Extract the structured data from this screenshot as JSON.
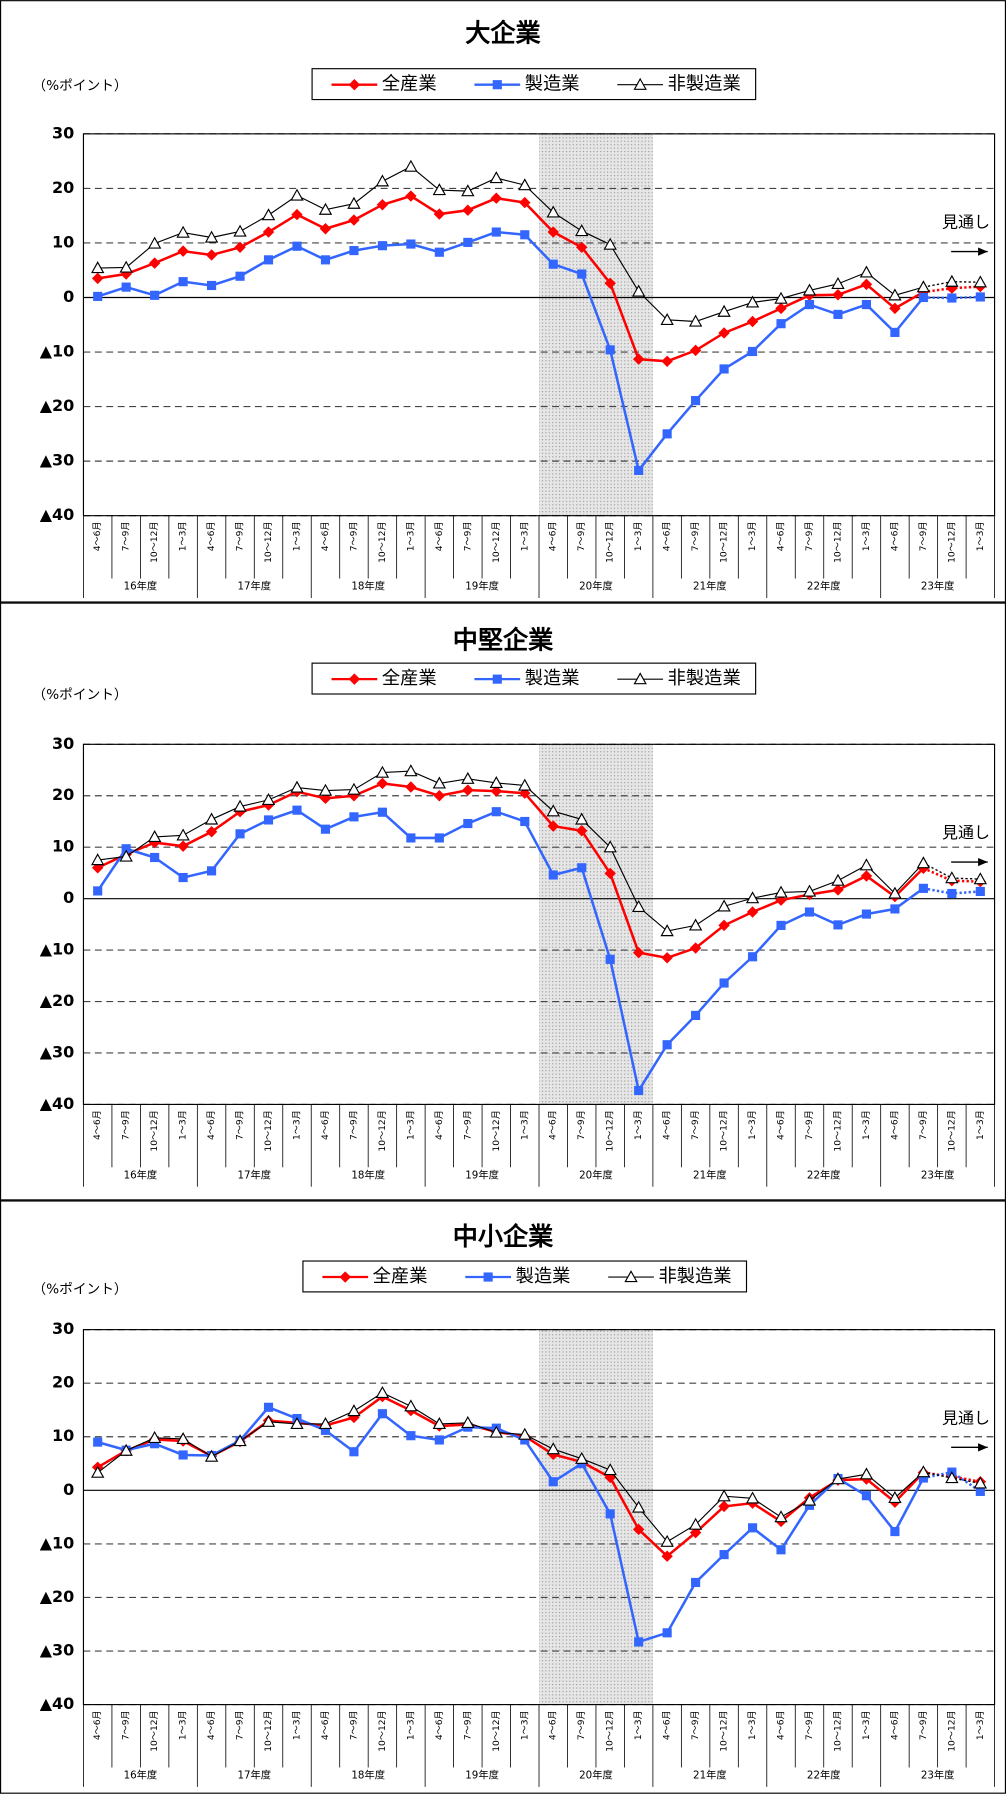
{
  "chart_data": [
    {
      "type": "line",
      "title": "大企業",
      "y_label": "（%ポイント）",
      "categories": [
        "4～6月",
        "7～9月",
        "10～12月",
        "1～3月",
        "4～6月",
        "7～9月",
        "10～12月",
        "1～3月",
        "4～6月",
        "7～9月",
        "10～12月",
        "1～3月",
        "4～6月",
        "7～9月",
        "10～12月",
        "1～3月",
        "4～6月",
        "7～9月",
        "10～12月",
        "1～3月",
        "4～6月",
        "7～9月",
        "10～12月",
        "1～3月",
        "4～6月",
        "7～9月",
        "10～12月",
        "1～3月",
        "4～6月",
        "7～9月",
        "10～12月",
        "1～3月"
      ],
      "groups": [
        "16年度",
        "17年度",
        "18年度",
        "19年度",
        "20年度",
        "21年度",
        "22年度",
        "23年度"
      ],
      "shaded": "20年度",
      "forecast_label": "見通し",
      "forecast_start": 30,
      "ylim": [
        -40,
        30
      ],
      "yticks": [
        30,
        20,
        10,
        0,
        {
          "value": -10,
          "label": "▲10"
        },
        {
          "value": -20,
          "label": "▲20"
        },
        {
          "value": -30,
          "label": "▲30"
        },
        {
          "value": -40,
          "label": "▲40"
        }
      ],
      "grid": true,
      "series": [
        {
          "name": "全産業",
          "color": "#ff0000",
          "marker": "diamond",
          "values": [
            3.5,
            4.3,
            6.3,
            8.5,
            7.8,
            9.2,
            12,
            15.2,
            12.6,
            14.2,
            17,
            18.6,
            15.3,
            16,
            18.2,
            17.4,
            12,
            9.2,
            2.6,
            -11.3,
            -11.7,
            -9.7,
            -6.5,
            -4.4,
            -2,
            0.4,
            0.5,
            2.4,
            -2,
            1,
            1.7,
            2
          ]
        },
        {
          "name": "製造業",
          "color": "#3366ff",
          "marker": "square",
          "values": [
            0.2,
            1.9,
            0.4,
            2.9,
            2.2,
            3.9,
            6.9,
            9.4,
            6.9,
            8.6,
            9.5,
            9.8,
            8.3,
            10.1,
            12,
            11.5,
            6.1,
            4.3,
            -9.6,
            -31.7,
            -25,
            -18.9,
            -13.1,
            -9.9,
            -4.8,
            -1.3,
            -3.1,
            -1.3,
            -6.4,
            0,
            -0.1,
            0.1
          ]
        },
        {
          "name": "非製造業",
          "color": "#000000",
          "marker": "triangle",
          "values": [
            5.4,
            5.5,
            9.9,
            11.9,
            11,
            12.1,
            15.1,
            18.7,
            16.1,
            17.2,
            21.3,
            24,
            19.7,
            19.5,
            21.9,
            20.6,
            15.6,
            12.2,
            9.7,
            1.1,
            -4.1,
            -4.4,
            -2.6,
            -0.9,
            -0.2,
            1.3,
            2.5,
            4.6,
            0.4,
            1.9,
            2.9,
            2.8
          ]
        }
      ]
    },
    {
      "type": "line",
      "title": "中堅企業",
      "y_label": "（%ポイント）",
      "categories": [
        "4～6月",
        "7～9月",
        "10～12月",
        "1～3月",
        "4～6月",
        "7～9月",
        "10～12月",
        "1～3月",
        "4～6月",
        "7～9月",
        "10～12月",
        "1～3月",
        "4～6月",
        "7～9月",
        "10～12月",
        "1～3月",
        "4～6月",
        "7～9月",
        "10～12月",
        "1～3月",
        "4～6月",
        "7～9月",
        "10～12月",
        "1～3月",
        "4～6月",
        "7～9月",
        "10～12月",
        "1～3月",
        "4～6月",
        "7～9月",
        "10～12月",
        "1～3月"
      ],
      "groups": [
        "16年度",
        "17年度",
        "18年度",
        "19年度",
        "20年度",
        "21年度",
        "22年度",
        "23年度"
      ],
      "shaded": "20年度",
      "forecast_label": "見通し",
      "forecast_start": 30,
      "ylim": [
        -40,
        30
      ],
      "yticks": [
        30,
        20,
        10,
        0,
        {
          "value": -10,
          "label": "▲10"
        },
        {
          "value": -20,
          "label": "▲20"
        },
        {
          "value": -30,
          "label": "▲30"
        },
        {
          "value": -40,
          "label": "▲40"
        }
      ],
      "grid": true,
      "series": [
        {
          "name": "全産業",
          "color": "#ff0000",
          "marker": "diamond",
          "values": [
            6,
            8.6,
            10.9,
            10.2,
            13,
            16.9,
            18.2,
            20.8,
            19.5,
            20,
            22.4,
            21.7,
            20,
            21.1,
            20.9,
            20.5,
            14.1,
            13.2,
            4.9,
            -10.5,
            -11.5,
            -9.6,
            -5.2,
            -2.6,
            -0.3,
            0.8,
            1.7,
            4.4,
            0.4,
            5.9,
            3.5,
            3.3
          ]
        },
        {
          "name": "製造業",
          "color": "#3366ff",
          "marker": "square",
          "values": [
            1.5,
            9.7,
            8,
            4.1,
            5.4,
            12.6,
            15.3,
            17.2,
            13.5,
            15.9,
            16.8,
            11.8,
            11.8,
            14.6,
            16.9,
            15,
            4.6,
            6,
            -11.8,
            -37.3,
            -28.4,
            -22.7,
            -16.4,
            -11.3,
            -5.2,
            -2.6,
            -5.1,
            -3,
            -2,
            2,
            1,
            1.4
          ]
        },
        {
          "name": "非製造業",
          "color": "#000000",
          "marker": "triangle",
          "values": [
            7.5,
            8.2,
            12,
            12.3,
            15.4,
            17.9,
            19.2,
            21.6,
            21,
            21.2,
            24.5,
            24.8,
            22.4,
            23.3,
            22.5,
            22,
            17,
            15.4,
            10,
            -1.6,
            -6.3,
            -5.2,
            -1.5,
            0.1,
            1.2,
            1.4,
            3.5,
            6.5,
            1,
            6.9,
            4,
            3.8
          ]
        }
      ]
    },
    {
      "type": "line",
      "title": "中小企業",
      "y_label": "（%ポイント）",
      "categories": [
        "4～6月",
        "7～9月",
        "10～12月",
        "1～3月",
        "4～6月",
        "7～9月",
        "10～12月",
        "1～3月",
        "4～6月",
        "7～9月",
        "10～12月",
        "1～3月",
        "4～6月",
        "7～9月",
        "10～12月",
        "1～3月",
        "4～6月",
        "7～9月",
        "10～12月",
        "1～3月",
        "4～6月",
        "7～9月",
        "10～12月",
        "1～3月",
        "4～6月",
        "7～9月",
        "10～12月",
        "1～3月",
        "4～6月",
        "7～9月",
        "10～12月",
        "1～3月"
      ],
      "groups": [
        "16年度",
        "17年度",
        "18年度",
        "19年度",
        "20年度",
        "21年度",
        "22年度",
        "23年度"
      ],
      "shaded": "20年度",
      "forecast_label": "見通し",
      "forecast_start": 30,
      "ylim": [
        -40,
        30
      ],
      "yticks": [
        30,
        20,
        10,
        0,
        {
          "value": -10,
          "label": "▲10"
        },
        {
          "value": -20,
          "label": "▲20"
        },
        {
          "value": -30,
          "label": "▲30"
        },
        {
          "value": -40,
          "label": "▲40"
        }
      ],
      "grid": true,
      "series": [
        {
          "name": "全産業",
          "color": "#ff0000",
          "marker": "diamond",
          "values": [
            4.3,
            7.4,
            9.5,
            9.2,
            6.4,
            9.1,
            13,
            12.6,
            12.1,
            13.6,
            17.5,
            14.9,
            12,
            12.3,
            10.9,
            10.1,
            6.7,
            5.3,
            2.4,
            -7.3,
            -12.3,
            -7.9,
            -3,
            -2.4,
            -5.8,
            -1.4,
            1.9,
            2.1,
            -2.2,
            3.3,
            2.6,
            1.6
          ]
        },
        {
          "name": "製造業",
          "color": "#3366ff",
          "marker": "square",
          "values": [
            9,
            7.5,
            8.7,
            6.6,
            6.5,
            9.3,
            15.5,
            13.4,
            11.2,
            7.2,
            14.3,
            10.2,
            9.4,
            11.8,
            11.6,
            9.4,
            1.6,
            5,
            -4.4,
            -28.3,
            -26.6,
            -17.2,
            -12,
            -7,
            -11.1,
            -2.8,
            2.2,
            -1,
            -7.7,
            2.3,
            3.4,
            -0.2
          ]
        },
        {
          "name": "非製造業",
          "color": "#000000",
          "marker": "triangle",
          "values": [
            3.3,
            7.4,
            9.8,
            9.6,
            6.3,
            9.2,
            12.8,
            12.4,
            12.4,
            14.8,
            18.2,
            15.7,
            12.4,
            12.6,
            10.8,
            10.4,
            7.7,
            5.9,
            3.8,
            -3.2,
            -9.6,
            -6.4,
            -1.1,
            -1.5,
            -5,
            -1.9,
            2.1,
            3,
            -1.4,
            3.4,
            2.3,
            1.3
          ]
        }
      ]
    }
  ]
}
